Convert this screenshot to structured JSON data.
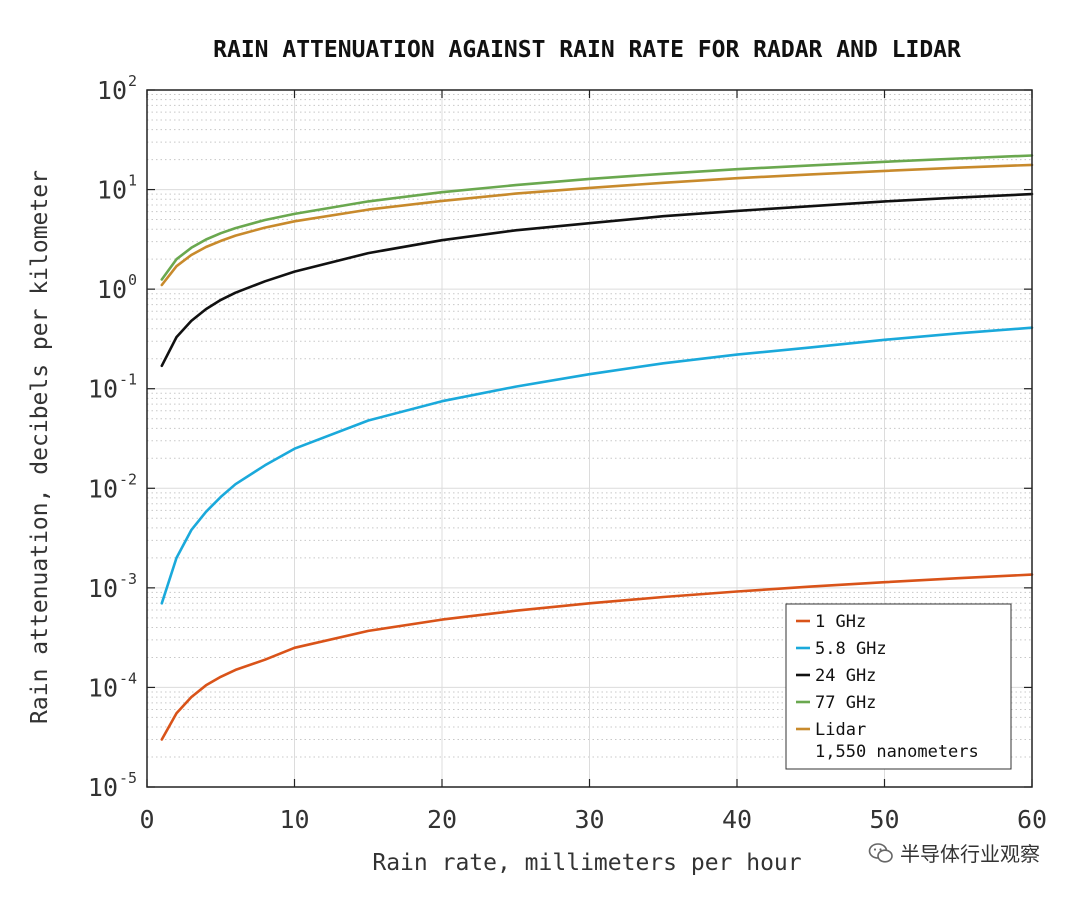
{
  "chart_data": {
    "type": "line",
    "title": "RAIN ATTENUATION AGAINST RAIN RATE FOR RADAR AND LIDAR",
    "xlabel": "Rain rate, millimeters per hour",
    "ylabel": "Rain attenuation, decibels per kilometer",
    "xlim": [
      0,
      60
    ],
    "ylim": [
      1e-05,
      100
    ],
    "yscale": "log",
    "xticks": [
      0,
      10,
      20,
      30,
      40,
      50,
      60
    ],
    "xtick_labels": [
      "0",
      "10",
      "20",
      "30",
      "40",
      "50",
      "60"
    ],
    "yticks": [
      {
        "value": 100,
        "base": "10",
        "exp": "2"
      },
      {
        "value": 10,
        "base": "10",
        "exp": "1"
      },
      {
        "value": 1,
        "base": "10",
        "exp": "0"
      },
      {
        "value": 0.1,
        "base": "10",
        "exp": "-1"
      },
      {
        "value": 0.01,
        "base": "10",
        "exp": "-2"
      },
      {
        "value": 0.001,
        "base": "10",
        "exp": "-3"
      },
      {
        "value": 0.0001,
        "base": "10",
        "exp": "-4"
      },
      {
        "value": 1e-05,
        "base": "10",
        "exp": "-5"
      }
    ],
    "grid": true,
    "legend_position": "bottom-right",
    "x": [
      1,
      2,
      3,
      4,
      5,
      6,
      8,
      10,
      15,
      20,
      25,
      30,
      35,
      40,
      45,
      50,
      55,
      60
    ],
    "series": [
      {
        "name": "1 GHz",
        "color": "#d95319",
        "values": [
          3e-05,
          5.5e-05,
          8e-05,
          0.000105,
          0.000128,
          0.00015,
          0.00019,
          0.00025,
          0.00037,
          0.00048,
          0.00059,
          0.0007,
          0.00081,
          0.00092,
          0.00103,
          0.00114,
          0.00125,
          0.00136
        ]
      },
      {
        "name": "5.8 GHz",
        "color": "#1aa9db",
        "values": [
          0.0007,
          0.002,
          0.0038,
          0.0058,
          0.0082,
          0.011,
          0.017,
          0.025,
          0.048,
          0.075,
          0.105,
          0.14,
          0.18,
          0.22,
          0.26,
          0.31,
          0.36,
          0.41
        ]
      },
      {
        "name": "24 GHz",
        "color": "#111111",
        "values": [
          0.17,
          0.33,
          0.48,
          0.63,
          0.78,
          0.92,
          1.2,
          1.5,
          2.3,
          3.1,
          3.9,
          4.6,
          5.4,
          6.1,
          6.8,
          7.6,
          8.3,
          9.0
        ]
      },
      {
        "name": "77 GHz",
        "color": "#6aa84f",
        "values": [
          1.25,
          2.0,
          2.6,
          3.15,
          3.65,
          4.1,
          4.95,
          5.7,
          7.6,
          9.4,
          11.1,
          12.8,
          14.4,
          16.0,
          17.5,
          19.0,
          20.5,
          22.0
        ]
      },
      {
        "name": "Lidar",
        "name_line2": "1,550 nanometers",
        "color": "#c88a2c",
        "values": [
          1.1,
          1.7,
          2.2,
          2.65,
          3.05,
          3.45,
          4.15,
          4.8,
          6.3,
          7.7,
          9.1,
          10.4,
          11.7,
          13.0,
          14.2,
          15.4,
          16.6,
          17.7
        ]
      }
    ]
  },
  "watermark": {
    "text": "半导体行业观察"
  }
}
